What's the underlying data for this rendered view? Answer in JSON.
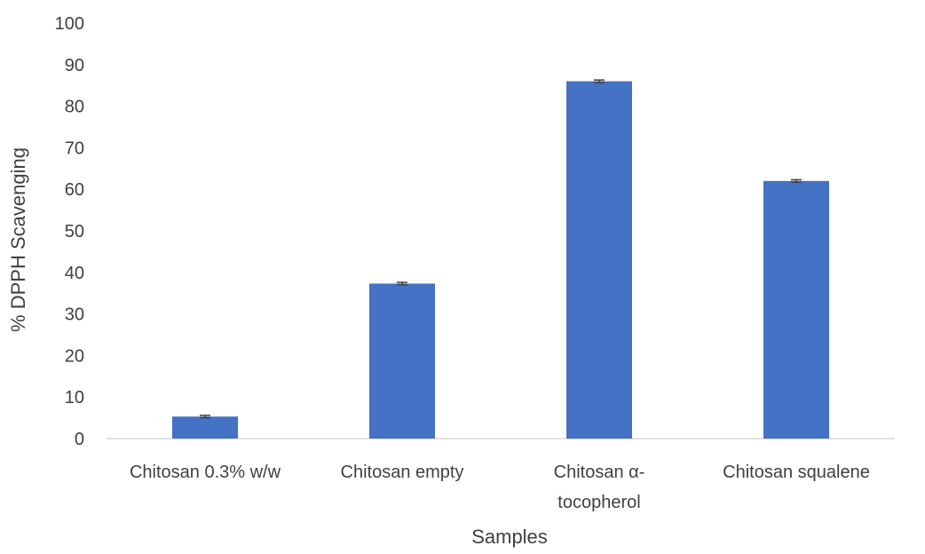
{
  "chart_data": {
    "type": "bar",
    "title": "",
    "xlabel": "Samples",
    "ylabel": "% DPPH Scavenging",
    "ylim": [
      0,
      100
    ],
    "yticks": [
      0,
      10,
      20,
      30,
      40,
      50,
      60,
      70,
      80,
      90,
      100
    ],
    "categories": [
      [
        "Chitosan 0.3% w/w"
      ],
      [
        "Chitosan empty"
      ],
      [
        "Chitosan α-",
        "tocopherol"
      ],
      [
        "Chitosan squalene"
      ]
    ],
    "values": [
      5.3,
      37.3,
      86.0,
      62.0
    ],
    "error": [
      0.3,
      0.3,
      0.3,
      0.3
    ],
    "bar_color": "#4472C4",
    "error_color": "#404040",
    "axis_color": "#d9d9d9",
    "grid": false,
    "legend": "none"
  }
}
